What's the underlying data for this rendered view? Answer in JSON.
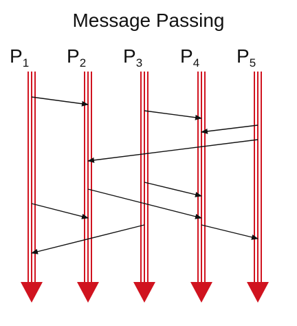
{
  "title": "Message Passing",
  "processes": [
    {
      "letter": "P",
      "index": "1"
    },
    {
      "letter": "P",
      "index": "2"
    },
    {
      "letter": "P",
      "index": "3"
    },
    {
      "letter": "P",
      "index": "4"
    },
    {
      "letter": "P",
      "index": "5"
    }
  ],
  "messages": [
    {
      "from": "P1",
      "to": "P2"
    },
    {
      "from": "P3",
      "to": "P4"
    },
    {
      "from": "P5",
      "to": "P4"
    },
    {
      "from": "P5",
      "to": "P2"
    },
    {
      "from": "P3",
      "to": "P4"
    },
    {
      "from": "P2",
      "to": "P4"
    },
    {
      "from": "P1",
      "to": "P2"
    },
    {
      "from": "P4",
      "to": "P5"
    },
    {
      "from": "P3",
      "to": "P1"
    }
  ],
  "colors": {
    "timeline": "#d0131f",
    "arrow": "#111111",
    "text": "#111111"
  }
}
